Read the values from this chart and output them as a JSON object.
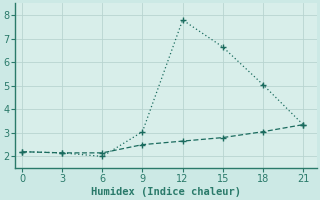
{
  "xlabel": "Humidex (Indice chaleur)",
  "background_color": "#cce9e5",
  "plot_bg_color": "#d8eeea",
  "grid_color": "#b8d4d0",
  "line_color": "#1a6b5e",
  "spine_color": "#2a7a6a",
  "xlim": [
    -0.5,
    22
  ],
  "ylim": [
    1.5,
    8.5
  ],
  "xticks": [
    0,
    3,
    6,
    9,
    12,
    15,
    18,
    21
  ],
  "yticks": [
    2,
    3,
    4,
    5,
    6,
    7,
    8
  ],
  "line1_x": [
    0,
    3,
    6,
    9,
    12,
    15,
    18,
    21
  ],
  "line1_y": [
    2.2,
    2.15,
    2.0,
    3.05,
    7.8,
    6.65,
    5.05,
    3.35
  ],
  "line2_x": [
    0,
    3,
    6,
    9,
    12,
    15,
    18,
    21
  ],
  "line2_y": [
    2.2,
    2.15,
    2.15,
    2.5,
    2.65,
    2.8,
    3.05,
    3.35
  ]
}
